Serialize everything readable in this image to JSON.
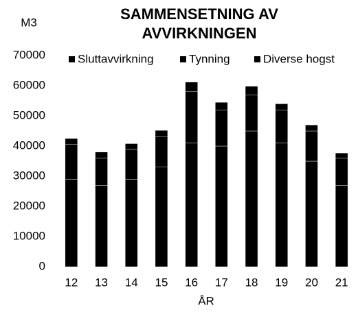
{
  "chart_data": {
    "type": "stacked_bar",
    "title_lines": [
      "SAMMENSETNING AV",
      "AVVIRKNINGEN"
    ],
    "y_label": "M3",
    "x_label": "ÅR",
    "categories": [
      "12",
      "13",
      "14",
      "15",
      "16",
      "17",
      "18",
      "19",
      "20",
      "21"
    ],
    "series": [
      {
        "name": "Sluttavvirkning",
        "color": "#000000",
        "values": [
          29000,
          27000,
          29000,
          33000,
          41000,
          40000,
          45000,
          41000,
          35000,
          27000
        ]
      },
      {
        "name": "Tynning",
        "color": "#000000",
        "values": [
          11500,
          9000,
          10000,
          10000,
          17000,
          12000,
          12000,
          11000,
          10000,
          9000
        ]
      },
      {
        "name": "Diverse hogst",
        "color": "#000000",
        "values": [
          2000,
          2000,
          1800,
          2200,
          3200,
          2500,
          2800,
          2000,
          2000,
          1700
        ]
      }
    ],
    "ylim": [
      0,
      70000
    ],
    "yticks": [
      0,
      10000,
      20000,
      30000,
      40000,
      50000,
      60000,
      70000
    ],
    "grid": false
  }
}
